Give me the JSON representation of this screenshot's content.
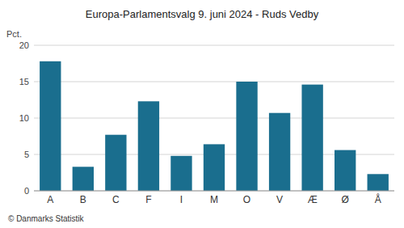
{
  "chart_data": {
    "type": "bar",
    "title": "Europa-Parlamentsvalg 9. juni 2024 - Ruds Vedby",
    "categories": [
      "A",
      "B",
      "C",
      "F",
      "I",
      "M",
      "O",
      "V",
      "Æ",
      "Ø",
      "Å"
    ],
    "values": [
      17.8,
      3.3,
      7.7,
      12.3,
      4.8,
      6.4,
      15.0,
      10.7,
      14.6,
      5.6,
      2.3
    ],
    "color": "#1a6e8e",
    "ylabel": "Pct.",
    "annotations": [
      "© Danmarks Statistik"
    ],
    "ylim": [
      0,
      20
    ],
    "yticks": [
      0,
      5,
      10,
      15,
      20
    ],
    "grid": true
  }
}
